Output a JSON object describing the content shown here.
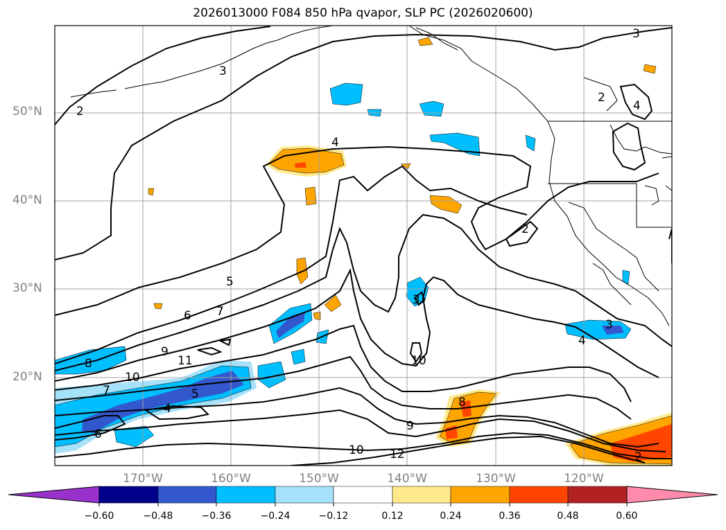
{
  "title": "2026013000 F084 850 hPa qvapor, SLP PC (2026020600)",
  "lat_labels": [
    "50°N",
    "40°N",
    "30°N",
    "20°N"
  ],
  "lon_labels": [
    "170°W",
    "160°W",
    "150°W",
    "140°W",
    "130°W",
    "120°W"
  ],
  "contour_labels": [
    "2",
    "3",
    "4",
    "5",
    "6",
    "7",
    "8",
    "9",
    "10",
    "11",
    "12",
    "2",
    "3",
    "4",
    "5",
    "6",
    "7",
    "8",
    "9",
    "10",
    "4",
    "3",
    "2",
    "10",
    "2",
    "4",
    "3"
  ],
  "colorbar": {
    "colors": [
      "#9932cc",
      "#00008b",
      "#3357cc",
      "#00bfff",
      "#a6e1fa",
      "#ffffff",
      "#ffe98a",
      "#ffa500",
      "#ff4500",
      "#b22222",
      "#ff8aab"
    ],
    "ticks": [
      "−0.60",
      "−0.48",
      "−0.36",
      "−0.24",
      "−0.12",
      "0.12",
      "0.24",
      "0.36",
      "0.48",
      "0.60"
    ]
  }
}
